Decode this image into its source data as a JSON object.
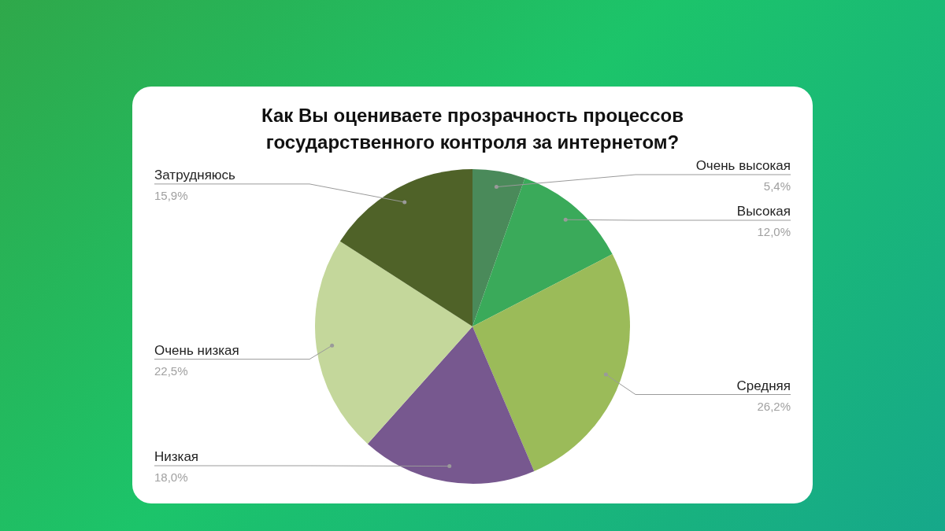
{
  "chart_data": {
    "type": "pie",
    "title": "Как Вы оцениваете прозрачность процессов государственного контроля за интернетом?",
    "categories": [
      "Очень высокая",
      "Высокая",
      "Средняя",
      "Низкая",
      "Очень низкая",
      "Затрудняюсь"
    ],
    "values": [
      5.4,
      12.0,
      26.2,
      18.0,
      22.5,
      15.9
    ],
    "value_labels": [
      "5,4%",
      "12,0%",
      "26,2%",
      "18,0%",
      "22,5%",
      "15,9%"
    ],
    "colors": [
      "#4a8a5a",
      "#3aaa5a",
      "#9bbb59",
      "#77588f",
      "#c4d79b",
      "#4f6228"
    ],
    "legend": false
  }
}
